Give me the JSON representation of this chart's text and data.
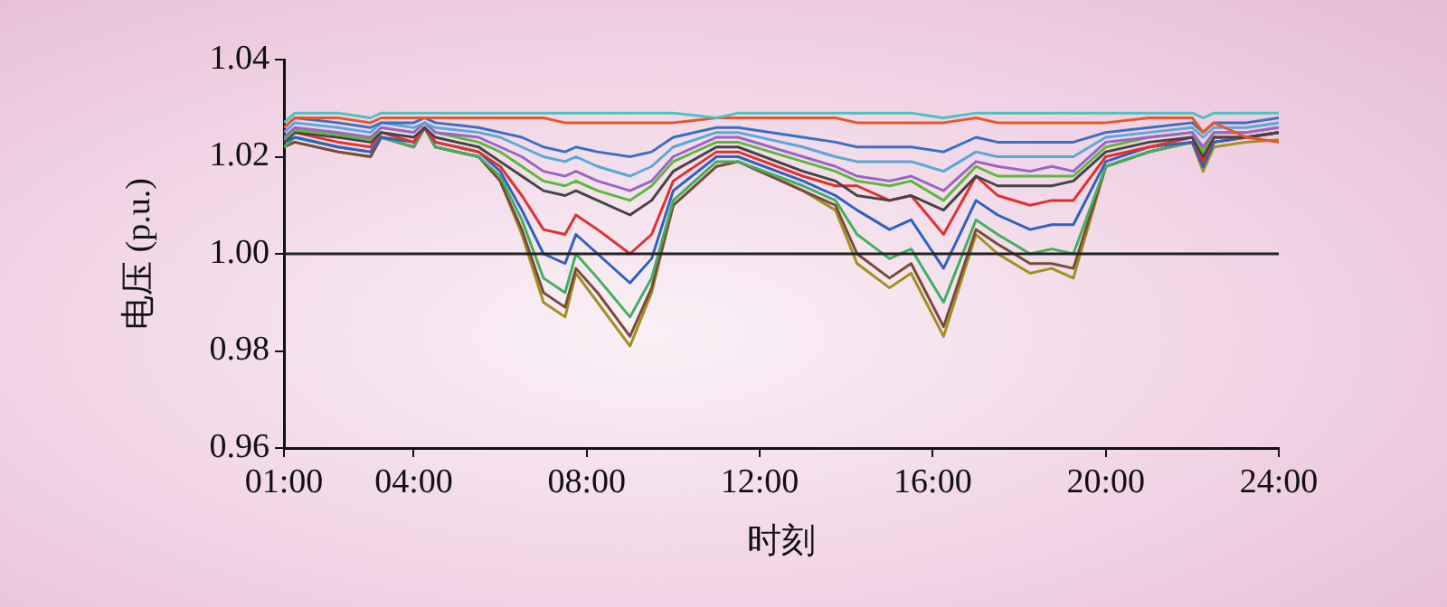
{
  "chart_data": {
    "type": "line",
    "xlabel": "时刻",
    "ylabel": "电压 (p.u.)",
    "marker": "none",
    "grid": false,
    "legend": false,
    "x": [
      1,
      1.25,
      2.25,
      3,
      3.25,
      4,
      4.25,
      4.5,
      5.5,
      6,
      6.5,
      7,
      7.5,
      7.75,
      8.25,
      9,
      9.5,
      10,
      11,
      11.5,
      13,
      13.75,
      14.25,
      15,
      15.5,
      16.25,
      17,
      17.5,
      18.25,
      18.75,
      19.25,
      20,
      21,
      22,
      22.25,
      22.5,
      23.25,
      24
    ],
    "xlim": [
      1,
      24
    ],
    "xticks": [
      {
        "value": 1,
        "label": "01:00"
      },
      {
        "value": 4,
        "label": "04:00"
      },
      {
        "value": 8,
        "label": "08:00"
      },
      {
        "value": 12,
        "label": "12:00"
      },
      {
        "value": 16,
        "label": "16:00"
      },
      {
        "value": 20,
        "label": "20:00"
      },
      {
        "value": 24,
        "label": "24:00"
      }
    ],
    "ylim": [
      0.96,
      1.04
    ],
    "yticks": [
      0.96,
      0.98,
      {
        "value": 1,
        "label": "1.00"
      },
      1.02,
      1.04
    ],
    "ref_lines": [
      {
        "axis": "y",
        "value": 1,
        "color": "#222222"
      }
    ],
    "series": [
      {
        "color": "#4fc1c0",
        "values": [
          1.027,
          1.029,
          1.029,
          1.028,
          1.029,
          1.029,
          1.029,
          1.029,
          1.029,
          1.029,
          1.029,
          1.029,
          1.029,
          1.029,
          1.029,
          1.029,
          1.029,
          1.029,
          1.028,
          1.029,
          1.029,
          1.029,
          1.029,
          1.029,
          1.029,
          1.028,
          1.029,
          1.029,
          1.029,
          1.029,
          1.029,
          1.029,
          1.029,
          1.029,
          1.028,
          1.029,
          1.029,
          1.029
        ]
      },
      {
        "color": "#e8562a",
        "values": [
          1.026,
          1.028,
          1.028,
          1.027,
          1.028,
          1.028,
          1.028,
          1.028,
          1.028,
          1.028,
          1.028,
          1.028,
          1.027,
          1.027,
          1.027,
          1.027,
          1.027,
          1.027,
          1.028,
          1.028,
          1.028,
          1.028,
          1.027,
          1.027,
          1.027,
          1.027,
          1.028,
          1.027,
          1.027,
          1.027,
          1.027,
          1.027,
          1.028,
          1.028,
          1.025,
          1.027,
          1.024,
          1.023
        ]
      },
      {
        "color": "#3a6fc4",
        "values": [
          1.026,
          1.028,
          1.027,
          1.026,
          1.027,
          1.027,
          1.028,
          1.027,
          1.026,
          1.025,
          1.024,
          1.022,
          1.021,
          1.022,
          1.021,
          1.02,
          1.021,
          1.024,
          1.026,
          1.026,
          1.024,
          1.023,
          1.022,
          1.022,
          1.022,
          1.021,
          1.024,
          1.023,
          1.023,
          1.023,
          1.023,
          1.025,
          1.026,
          1.027,
          1.025,
          1.027,
          1.027,
          1.028
        ]
      },
      {
        "color": "#5aa8d8",
        "values": [
          1.025,
          1.027,
          1.026,
          1.025,
          1.027,
          1.026,
          1.027,
          1.026,
          1.025,
          1.024,
          1.022,
          1.02,
          1.019,
          1.02,
          1.018,
          1.016,
          1.018,
          1.022,
          1.025,
          1.025,
          1.022,
          1.02,
          1.019,
          1.019,
          1.019,
          1.017,
          1.021,
          1.02,
          1.02,
          1.02,
          1.02,
          1.024,
          1.025,
          1.026,
          1.024,
          1.026,
          1.026,
          1.027
        ]
      },
      {
        "color": "#9a64c8",
        "values": [
          1.024,
          1.026,
          1.025,
          1.024,
          1.026,
          1.025,
          1.027,
          1.025,
          1.024,
          1.022,
          1.02,
          1.017,
          1.016,
          1.017,
          1.015,
          1.013,
          1.015,
          1.02,
          1.024,
          1.024,
          1.02,
          1.018,
          1.016,
          1.015,
          1.016,
          1.013,
          1.019,
          1.018,
          1.017,
          1.018,
          1.017,
          1.023,
          1.024,
          1.025,
          1.022,
          1.025,
          1.025,
          1.026
        ]
      },
      {
        "color": "#5cb83a",
        "values": [
          1.0235,
          1.0255,
          1.0245,
          1.0235,
          1.026,
          1.025,
          1.027,
          1.025,
          1.023,
          1.021,
          1.018,
          1.015,
          1.014,
          1.015,
          1.013,
          1.011,
          1.014,
          1.019,
          1.023,
          1.023,
          1.019,
          1.017,
          1.015,
          1.014,
          1.015,
          1.011,
          1.018,
          1.016,
          1.016,
          1.016,
          1.016,
          1.022,
          1.024,
          1.025,
          1.021,
          1.025,
          1.025,
          1.026
        ]
      },
      {
        "color": "#444444",
        "values": [
          1.023,
          1.025,
          1.024,
          1.023,
          1.025,
          1.024,
          1.026,
          1.024,
          1.022,
          1.019,
          1.016,
          1.013,
          1.012,
          1.013,
          1.011,
          1.008,
          1.011,
          1.017,
          1.022,
          1.022,
          1.017,
          1.015,
          1.012,
          1.011,
          1.012,
          1.009,
          1.016,
          1.014,
          1.014,
          1.014,
          1.015,
          1.021,
          1.023,
          1.024,
          1.02,
          1.024,
          1.024,
          1.025
        ]
      },
      {
        "color": "#e03030",
        "values": [
          1.023,
          1.025,
          1.023,
          1.022,
          1.025,
          1.023,
          1.026,
          1.023,
          1.021,
          1.018,
          1.012,
          1.005,
          1.004,
          1.008,
          1.005,
          1.0,
          1.004,
          1.015,
          1.021,
          1.021,
          1.016,
          1.014,
          1.014,
          1.011,
          1.012,
          1.004,
          1.016,
          1.012,
          1.01,
          1.011,
          1.011,
          1.02,
          1.022,
          1.024,
          1.019,
          1.024,
          1.024,
          1.025
        ]
      },
      {
        "color": "#3060c0",
        "values": [
          1.023,
          1.024,
          1.022,
          1.021,
          1.024,
          1.023,
          1.026,
          1.023,
          1.021,
          1.017,
          1.009,
          1.0,
          0.998,
          1.004,
          1.0,
          0.994,
          0.999,
          1.013,
          1.02,
          1.02,
          1.015,
          1.012,
          1.009,
          1.005,
          1.007,
          0.997,
          1.011,
          1.008,
          1.005,
          1.006,
          1.006,
          1.019,
          1.022,
          1.023,
          1.018,
          1.023,
          1.024,
          1.025
        ]
      },
      {
        "color": "#40b060",
        "values": [
          1.022,
          1.024,
          1.022,
          1.021,
          1.024,
          1.022,
          1.026,
          1.022,
          1.02,
          1.016,
          1.007,
          0.995,
          0.992,
          1.0,
          0.995,
          0.987,
          0.995,
          1.011,
          1.019,
          1.019,
          1.014,
          1.011,
          1.004,
          0.999,
          1.001,
          0.99,
          1.007,
          1.004,
          1.0,
          1.001,
          1.0,
          1.018,
          1.021,
          1.023,
          1.018,
          1.023,
          1.024,
          1.025
        ]
      },
      {
        "color": "#7a4a3a",
        "values": [
          1.022,
          1.023,
          1.021,
          1.02,
          1.024,
          1.022,
          1.026,
          1.022,
          1.02,
          1.015,
          1.005,
          0.992,
          0.989,
          0.997,
          0.992,
          0.983,
          0.993,
          1.01,
          1.018,
          1.019,
          1.013,
          1.01,
          1.0,
          0.995,
          0.998,
          0.985,
          1.005,
          1.002,
          0.998,
          0.998,
          0.997,
          1.018,
          1.021,
          1.023,
          1.018,
          1.023,
          1.024,
          1.025
        ]
      },
      {
        "color": "#a09020",
        "values": [
          1.022,
          1.023,
          1.021,
          1.02,
          1.024,
          1.022,
          1.026,
          1.022,
          1.02,
          1.015,
          1.004,
          0.99,
          0.987,
          0.996,
          0.99,
          0.981,
          0.992,
          1.01,
          1.018,
          1.019,
          1.013,
          1.009,
          0.998,
          0.993,
          0.996,
          0.983,
          1.004,
          1.0,
          0.996,
          0.997,
          0.995,
          1.018,
          1.021,
          1.023,
          1.017,
          1.022,
          1.023,
          1.0235
        ]
      }
    ]
  }
}
